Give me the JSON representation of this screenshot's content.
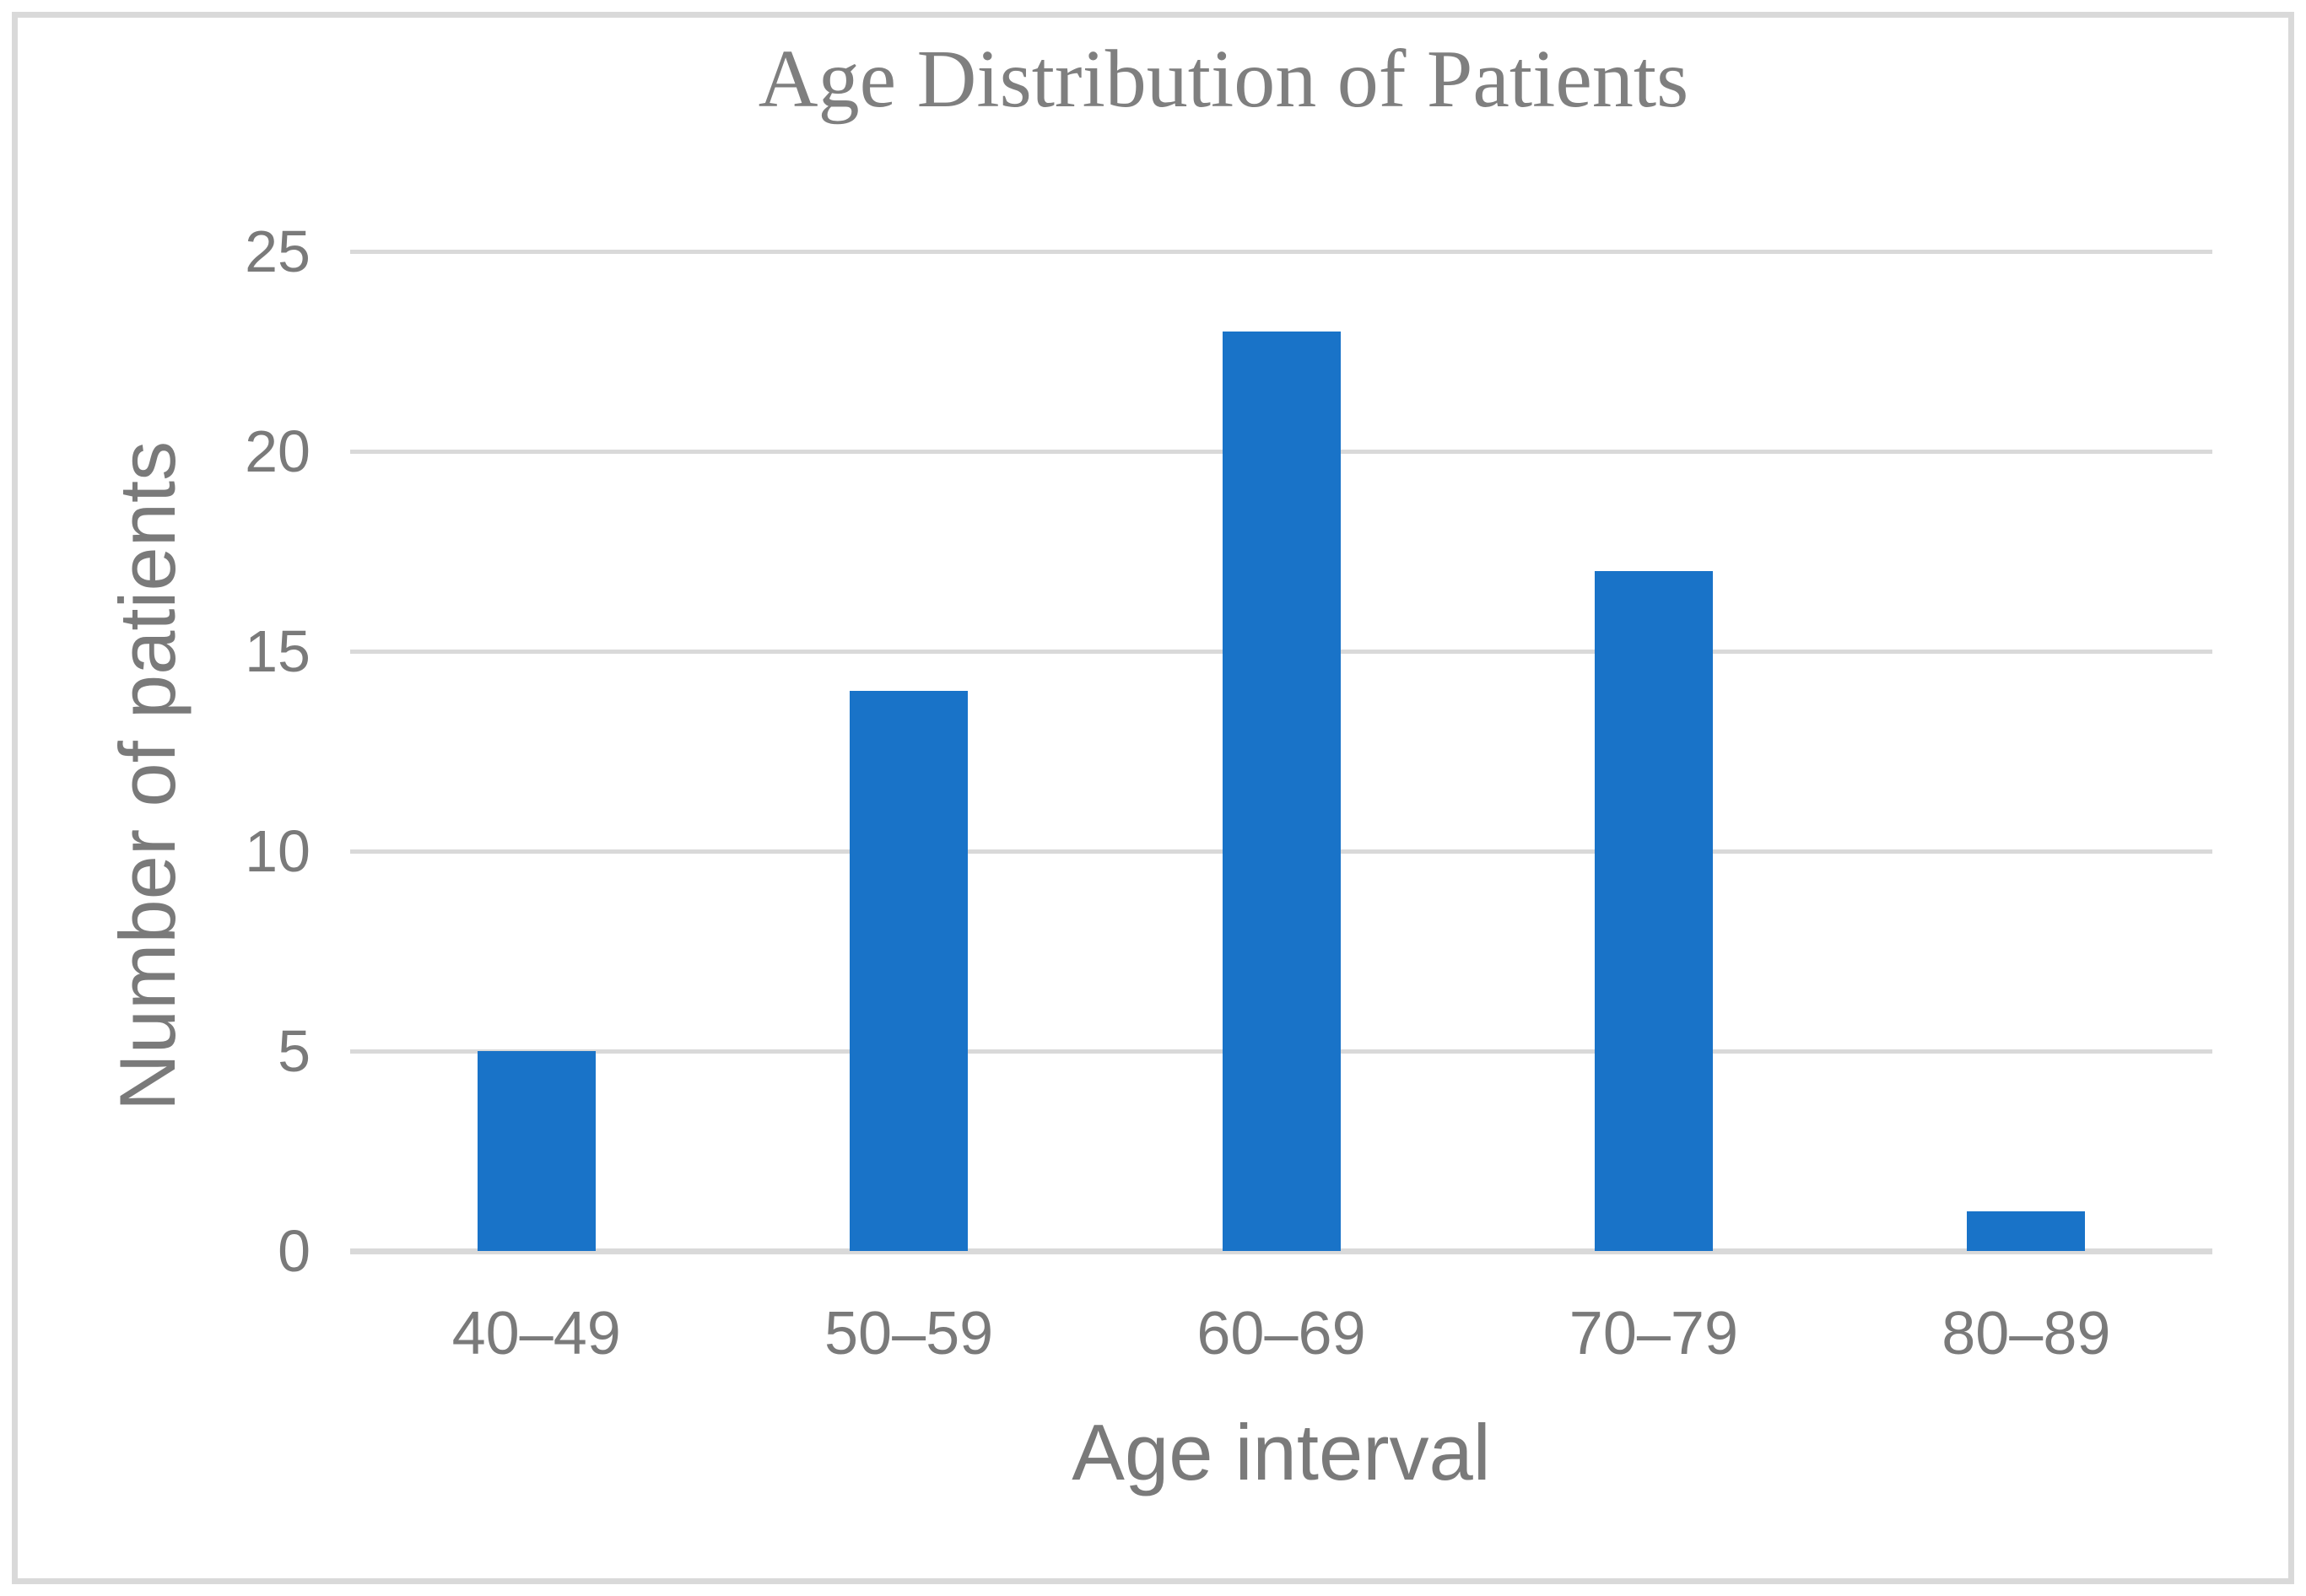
{
  "figure": {
    "background_color": "#FFFFFF",
    "border_color": "#D9D9D9"
  },
  "chart_data": {
    "type": "bar",
    "title": "Age Distribution of Patients",
    "categories": [
      "40–49",
      "50–59",
      "60–69",
      "70–79",
      "80–89"
    ],
    "values": [
      5,
      14,
      23,
      17,
      1
    ],
    "xlabel": "Age interval",
    "ylabel": "Number of patients",
    "ylim": [
      0,
      25
    ],
    "yticks": [
      0,
      5,
      10,
      15,
      20,
      25
    ],
    "grid": "horizontal",
    "legend": "none",
    "bar_color": "#1973C8",
    "gridline_color": "#D9D9D9",
    "title_color": "#7F7F7F",
    "axis_text_color": "#7A7A7A"
  }
}
